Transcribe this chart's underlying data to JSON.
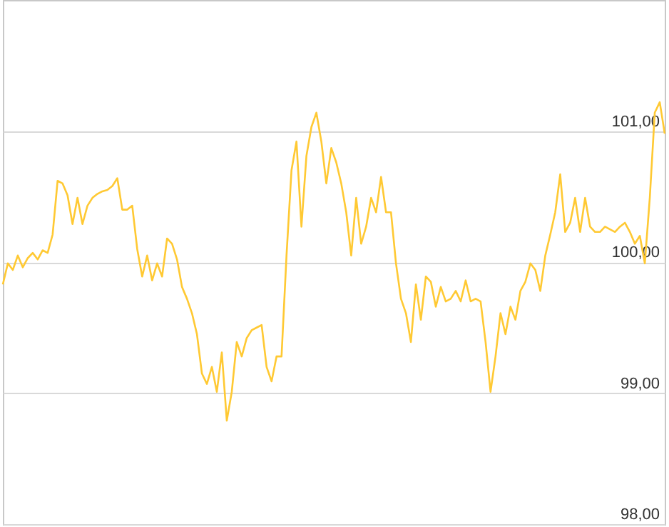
{
  "chart_data": {
    "type": "line",
    "categories": [
      null,
      null,
      null,
      null,
      null,
      null,
      null,
      null,
      null,
      null,
      null,
      null,
      null,
      null,
      null,
      null,
      null,
      null,
      null,
      null,
      null,
      null,
      null,
      null,
      null,
      null,
      null,
      null,
      null,
      null,
      null,
      null,
      null,
      null,
      null,
      null,
      null,
      null,
      null,
      null,
      null,
      null,
      null,
      null,
      null,
      null,
      null,
      null,
      null,
      null,
      null,
      null,
      null,
      null,
      null,
      null,
      null,
      null,
      null,
      null,
      null,
      null,
      null,
      null,
      null,
      null,
      null,
      null,
      null,
      null,
      null,
      null,
      null,
      null,
      null,
      null,
      null,
      null,
      null,
      null,
      null,
      null,
      null,
      null,
      null,
      null,
      null,
      null,
      null,
      null,
      null,
      null,
      null,
      null,
      null,
      null,
      null,
      null,
      null,
      null,
      null,
      null,
      null,
      null,
      null,
      null,
      null,
      null,
      null,
      null,
      null,
      null,
      null,
      null,
      null,
      null,
      null,
      null,
      null,
      null,
      null,
      null,
      null,
      null,
      null,
      null,
      null,
      null,
      null,
      null,
      null,
      null,
      null,
      null
    ],
    "series": [
      {
        "color": "#ffc933",
        "values": [
          99.83,
          99.99,
          99.94,
          100.05,
          99.96,
          100.03,
          100.07,
          100.02,
          100.09,
          100.07,
          100.21,
          100.62,
          100.6,
          100.51,
          100.29,
          100.49,
          100.29,
          100.43,
          100.49,
          100.52,
          100.54,
          100.55,
          100.58,
          100.64,
          100.4,
          100.4,
          100.43,
          100.1,
          99.89,
          100.05,
          99.86,
          99.99,
          99.89,
          100.18,
          100.14,
          100.02,
          99.81,
          99.72,
          99.61,
          99.45,
          99.15,
          99.07,
          99.2,
          99.01,
          99.31,
          98.79,
          99.01,
          99.39,
          99.28,
          99.42,
          99.48,
          99.5,
          99.52,
          99.2,
          99.09,
          99.28,
          99.28,
          100.05,
          100.7,
          100.92,
          100.27,
          100.81,
          101.03,
          101.14,
          100.92,
          100.6,
          100.87,
          100.76,
          100.6,
          100.38,
          100.05,
          100.49,
          100.14,
          100.27,
          100.49,
          100.38,
          100.65,
          100.38,
          100.38,
          99.99,
          99.72,
          99.61,
          99.39,
          99.83,
          99.56,
          99.89,
          99.85,
          99.66,
          99.81,
          99.7,
          99.72,
          99.78,
          99.7,
          99.86,
          99.7,
          99.72,
          99.7,
          99.39,
          99.01,
          99.28,
          99.61,
          99.45,
          99.66,
          99.56,
          99.78,
          99.85,
          99.99,
          99.94,
          99.78,
          100.05,
          100.21,
          100.38,
          100.67,
          100.23,
          100.3,
          100.49,
          100.23,
          100.49,
          100.27,
          100.23,
          100.23,
          100.27,
          100.25,
          100.23,
          100.27,
          100.3,
          100.23,
          100.14,
          100.2,
          99.99,
          100.49,
          101.14,
          101.22,
          100.98
        ]
      }
    ],
    "ylim": [
      98,
      102
    ],
    "yticks": [
      {
        "value": 98,
        "label": "98,00"
      },
      {
        "value": 99,
        "label": "99,00"
      },
      {
        "value": 100,
        "label": "100,00"
      },
      {
        "value": 101,
        "label": "101,00"
      }
    ],
    "grid": "y",
    "line_style": "solid",
    "marker": "none"
  }
}
